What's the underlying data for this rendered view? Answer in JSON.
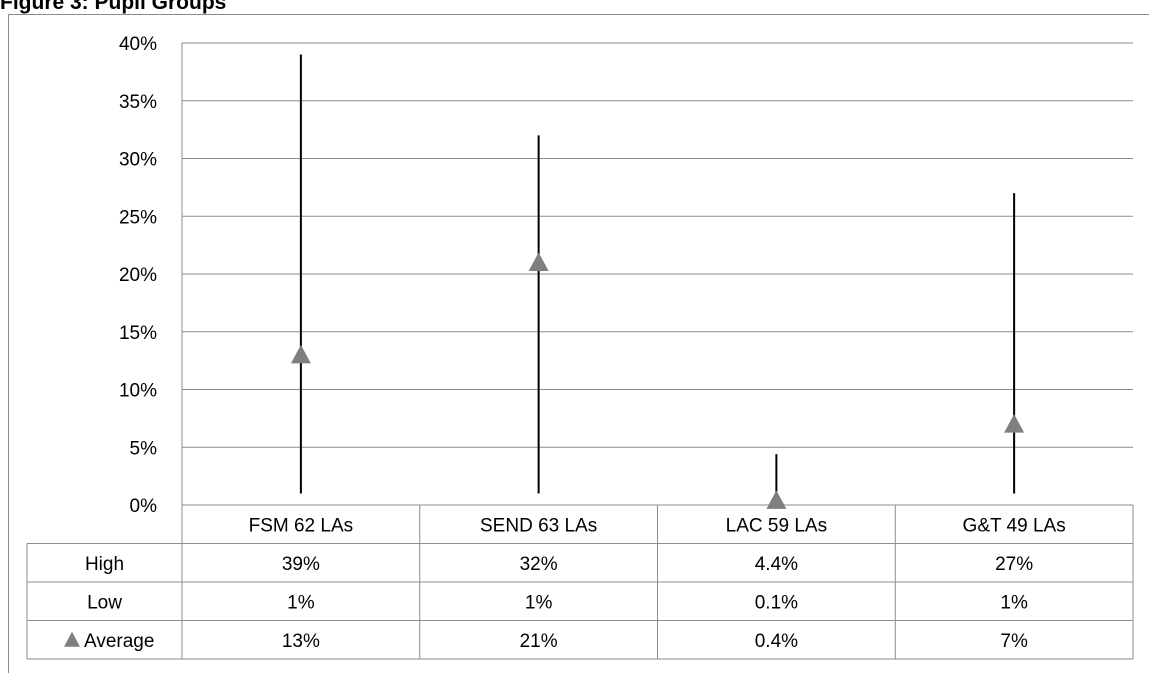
{
  "figure": {
    "title": "Figure 3: Pupil Groups"
  },
  "chart_data": {
    "type": "high-low",
    "title": "",
    "xlabel": "",
    "ylabel": "",
    "ylim": [
      0,
      40
    ],
    "yticks": [
      "0%",
      "5%",
      "10%",
      "15%",
      "20%",
      "25%",
      "30%",
      "35%",
      "40%"
    ],
    "grid": true,
    "categories": [
      "FSM 62 LAs",
      "SEND 63 LAs",
      "LAC 59 LAs",
      "G&T 49 LAs"
    ],
    "series": [
      {
        "name": "High",
        "values": [
          39,
          32,
          4.4,
          27
        ],
        "labels": [
          "39%",
          "32%",
          "4.4%",
          "27%"
        ]
      },
      {
        "name": "Low",
        "values": [
          1,
          1,
          0.1,
          1
        ],
        "labels": [
          "1%",
          "1%",
          "0.1%",
          "1%"
        ]
      },
      {
        "name": "Average",
        "values": [
          13,
          21,
          0.4,
          7
        ],
        "labels": [
          "13%",
          "21%",
          "0.4%",
          "7%"
        ],
        "marker": "triangle"
      }
    ],
    "colors": {
      "marker": "#7f7f7f",
      "line": "#000000",
      "grid": "#8c8c8c"
    }
  }
}
